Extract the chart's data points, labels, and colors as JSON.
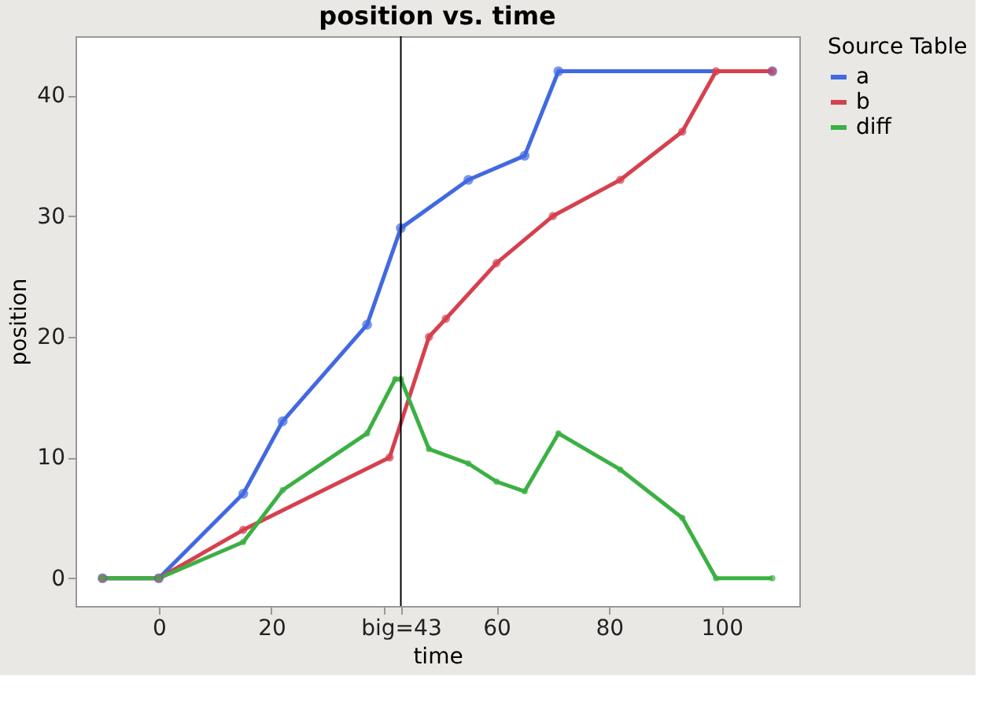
{
  "chart_data": {
    "type": "line",
    "title": "position vs. time",
    "xlabel": "time",
    "ylabel": "position",
    "legend_title": "Source Table",
    "xlim": [
      -14.8,
      113.8
    ],
    "ylim": [
      -2.3,
      44.9
    ],
    "xticks": [
      0,
      20,
      {
        "value": 40,
        "label": null
      },
      {
        "value": 43,
        "label": "big=43"
      },
      60,
      80,
      100
    ],
    "yticks": [
      0,
      10,
      20,
      30,
      40
    ],
    "series": [
      {
        "name": "a",
        "color": "#4169e1",
        "x": [
          -10,
          0,
          15,
          22,
          37,
          43,
          55,
          65,
          71,
          109
        ],
        "values": [
          0,
          0,
          7,
          13,
          21,
          29,
          33,
          35,
          42,
          42
        ]
      },
      {
        "name": "b",
        "color": "#d6404f",
        "x": [
          -10,
          0,
          15,
          41,
          48,
          51,
          60,
          70,
          82,
          93,
          99,
          109
        ],
        "values": [
          0,
          0,
          4,
          10,
          20,
          21.5,
          26.1,
          30,
          33,
          37,
          42,
          42
        ]
      },
      {
        "name": "diff",
        "color": "#3cb043",
        "x": [
          -10,
          0,
          15,
          22,
          37,
          42,
          43,
          48,
          55,
          60,
          65,
          71,
          82,
          93,
          99,
          109
        ],
        "values": [
          0,
          0,
          3,
          7.3,
          12,
          16.5,
          16.5,
          10.7,
          9.5,
          8,
          7.2,
          12,
          9,
          5,
          0,
          0
        ]
      }
    ],
    "ref_lines": [
      {
        "axis": "x",
        "value": 43,
        "color": "#000000"
      }
    ],
    "marker": "circle",
    "line_style": "solid",
    "grid": false,
    "legend": "right"
  }
}
